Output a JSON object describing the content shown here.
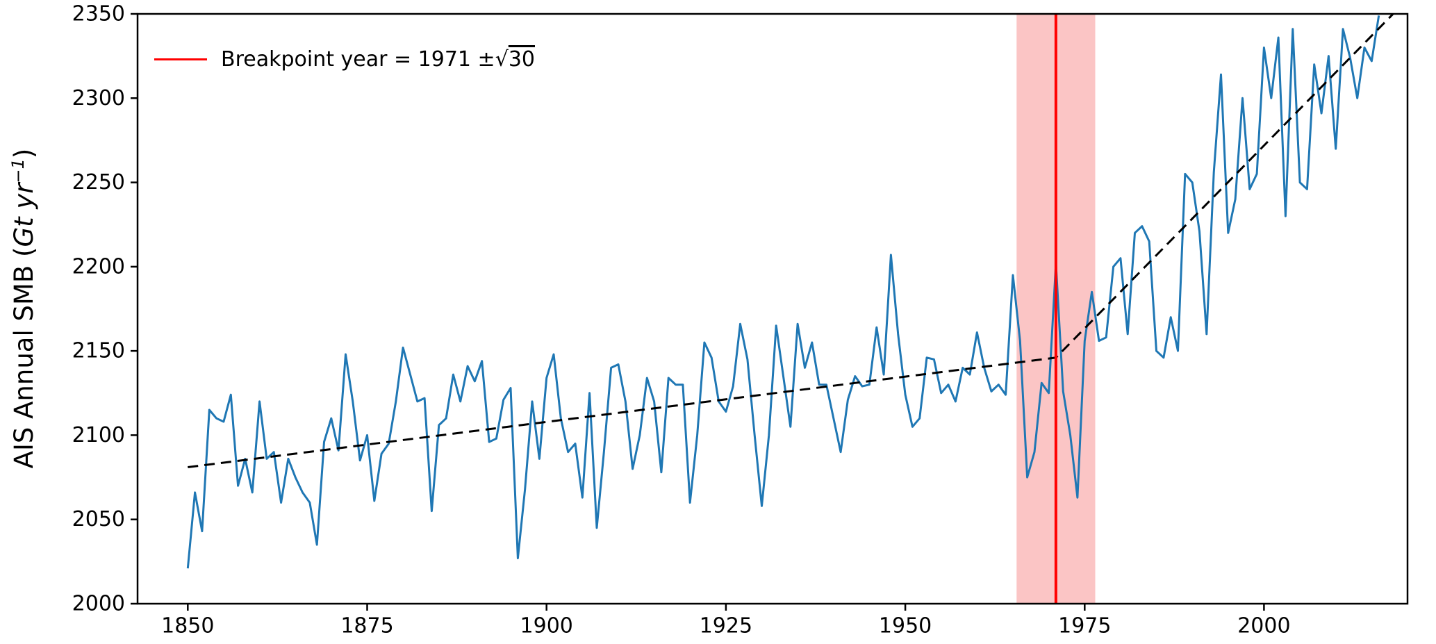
{
  "figure": {
    "y_axis_label": {
      "prefix": "AIS Annual SMB (",
      "unit_italic": "Gt yr",
      "unit_sup": "−1",
      "suffix": ")"
    },
    "legend": {
      "prefix": "Breakpoint year = 1971 ±",
      "radical": "√",
      "radicand": "30"
    }
  },
  "colors": {
    "series_blue": "#1f77b4",
    "trend_black": "#000000",
    "breakpoint_red": "#ff0000",
    "band_pink": "#fbc5c5",
    "spine": "#000000",
    "background": "#ffffff"
  },
  "chart_data": {
    "type": "line",
    "title": "",
    "xlabel": "",
    "ylabel": "AIS Annual SMB (Gt yr⁻¹)",
    "xlim": [
      1843,
      2020
    ],
    "ylim": [
      2000,
      2350
    ],
    "x_ticks": [
      1850,
      1875,
      1900,
      1925,
      1950,
      1975,
      2000
    ],
    "y_ticks": [
      2000,
      2050,
      2100,
      2150,
      2200,
      2250,
      2300,
      2350
    ],
    "grid": false,
    "legend_position": "upper left",
    "legend_label": "Breakpoint year = 1971 ±√30",
    "series": [
      {
        "name": "AIS annual surface mass balance",
        "style": "solid",
        "color": "#1f77b4",
        "x_start": 1850,
        "x_step": 1,
        "y": [
          2021,
          2066,
          2043,
          2115,
          2110,
          2108,
          2124,
          2070,
          2086,
          2066,
          2120,
          2086,
          2090,
          2060,
          2086,
          2075,
          2066,
          2060,
          2035,
          2096,
          2110,
          2091,
          2148,
          2120,
          2085,
          2100,
          2061,
          2089,
          2095,
          2120,
          2152,
          2136,
          2120,
          2122,
          2055,
          2106,
          2110,
          2136,
          2120,
          2141,
          2132,
          2144,
          2096,
          2098,
          2121,
          2128,
          2027,
          2068,
          2120,
          2086,
          2134,
          2148,
          2110,
          2090,
          2095,
          2063,
          2125,
          2045,
          2090,
          2140,
          2142,
          2120,
          2080,
          2100,
          2134,
          2120,
          2078,
          2134,
          2130,
          2130,
          2060,
          2100,
          2155,
          2146,
          2120,
          2114,
          2129,
          2166,
          2145,
          2100,
          2058,
          2100,
          2165,
          2135,
          2105,
          2166,
          2140,
          2155,
          2130,
          2130,
          2110,
          2090,
          2121,
          2135,
          2129,
          2130,
          2164,
          2136,
          2207,
          2160,
          2124,
          2105,
          2110,
          2146,
          2145,
          2125,
          2130,
          2120,
          2140,
          2136,
          2161,
          2140,
          2126,
          2130,
          2124,
          2195,
          2156,
          2075,
          2090,
          2131,
          2125,
          2202,
          2126,
          2100,
          2063,
          2156,
          2185,
          2156,
          2158,
          2200,
          2205,
          2160,
          2220,
          2224,
          2215,
          2150,
          2146,
          2170,
          2150,
          2255,
          2250,
          2221,
          2160,
          2256,
          2314,
          2220,
          2240,
          2300,
          2246,
          2255,
          2330,
          2300,
          2336,
          2230,
          2341,
          2250,
          2246,
          2320,
          2291,
          2325,
          2270,
          2341,
          2324,
          2300,
          2330,
          2322,
          2349
        ]
      },
      {
        "name": "piecewise linear trend",
        "style": "dashed",
        "color": "#000000",
        "points": [
          [
            1850,
            2081
          ],
          [
            1971,
            2146
          ],
          [
            2018,
            2350
          ]
        ]
      }
    ],
    "breakpoint": {
      "year": 1971,
      "band_halfwidth": 5.48,
      "band_range": [
        1965.52,
        1976.48
      ],
      "line_color": "#ff0000",
      "band_color": "#fbc5c5"
    }
  }
}
